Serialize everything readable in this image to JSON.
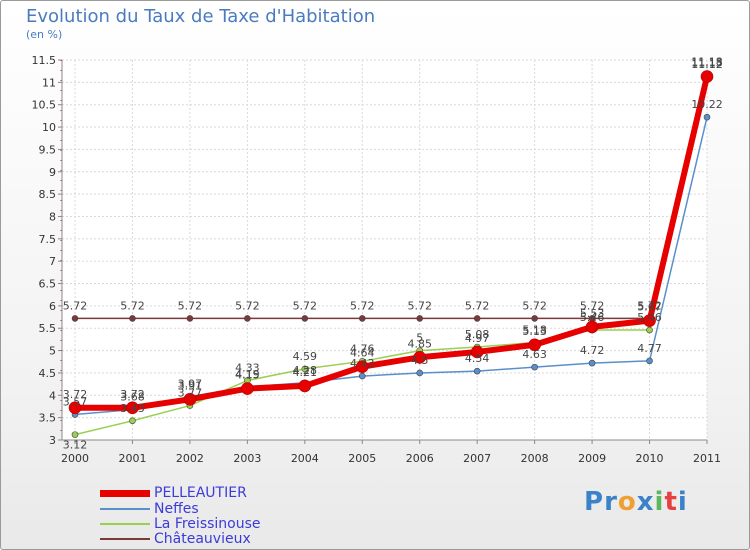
{
  "chart_data": {
    "type": "line",
    "title": "Evolution du Taux de Taxe d'Habitation",
    "subtitle": "(en %)",
    "x": [
      "2000",
      "2001",
      "2002",
      "2003",
      "2004",
      "2005",
      "2006",
      "2007",
      "2008",
      "2009",
      "2010",
      "2011"
    ],
    "y_ticks": [
      "3",
      "3.5",
      "4",
      "4.5",
      "5",
      "5.5",
      "6",
      "6.5",
      "7",
      "7.5",
      "8",
      "8.5",
      "9",
      "9.5",
      "10",
      "10.5",
      "11",
      "11.5"
    ],
    "ylim": [
      3,
      11.5
    ],
    "grid": true,
    "series": [
      {
        "name": "PELLEAUTIER",
        "color": "#e60000",
        "values": [
          3.72,
          3.72,
          3.91,
          4.15,
          4.21,
          4.64,
          4.85,
          4.97,
          5.13,
          5.53,
          5.67,
          11.13
        ],
        "labels": [
          "3.72",
          "3.72",
          "3.91",
          "4.15",
          "4.21",
          "4.64",
          "4.85",
          "4.97",
          "5.13",
          "5.53",
          "5.67",
          "11.13"
        ]
      },
      {
        "name": "Neffes",
        "color": "#5a8fcb",
        "values": [
          3.57,
          3.68,
          3.97,
          4.19,
          4.28,
          4.43,
          4.5,
          4.54,
          4.63,
          4.72,
          4.77,
          10.22
        ],
        "labels": [
          "3.57",
          "3.68",
          "3.97",
          "4.19",
          "4.28",
          "4.43",
          "4.5",
          "4.54",
          "4.63",
          "4.72",
          "4.77",
          "10.22"
        ]
      },
      {
        "name": "La Freissinouse",
        "color": "#99d04f",
        "values": [
          3.12,
          3.43,
          3.77,
          4.33,
          4.59,
          4.76,
          5.0,
          5.08,
          5.18,
          5.46,
          5.46,
          11.18
        ],
        "labels": [
          "3.12",
          "3.43",
          "3.77",
          "4.33",
          "4.59",
          "4.76",
          "5",
          "5.08",
          "5.18",
          "5.46",
          "5.46",
          "11.18"
        ]
      },
      {
        "name": "Châteauvieux",
        "color": "#7a3a3a",
        "values": [
          5.72,
          5.72,
          5.72,
          5.72,
          5.72,
          5.72,
          5.72,
          5.72,
          5.72,
          5.72,
          5.72,
          11.12
        ],
        "labels": [
          "5.72",
          "5.72",
          "5.72",
          "5.72",
          "5.72",
          "5.72",
          "5.72",
          "5.72",
          "5.72",
          "5.72",
          "5.72",
          "11.12"
        ]
      }
    ],
    "legend": "bottom-left"
  },
  "logo": {
    "letters": [
      "P",
      "r",
      "o",
      "x",
      "i",
      "t",
      "i"
    ],
    "colors": [
      "#3a83c8",
      "#3a83c8",
      "#f0a030",
      "#3a83c8",
      "#5cb85c",
      "#e84040",
      "#3a83c8"
    ]
  }
}
